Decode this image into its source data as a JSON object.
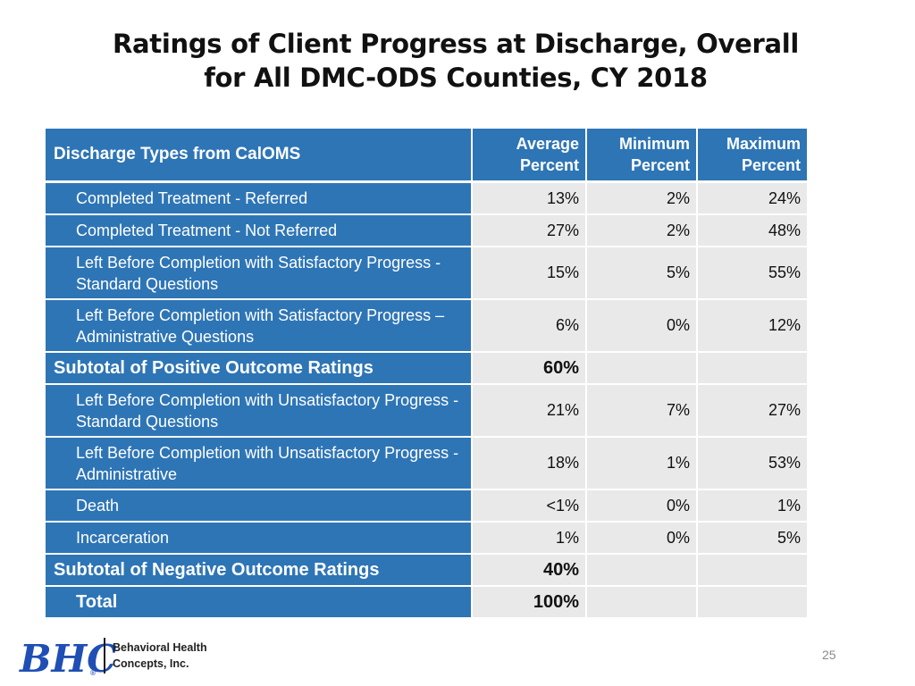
{
  "slide": {
    "title_line1": "Ratings of Client Progress at Discharge, Overall",
    "title_line2": "for All DMC-ODS Counties, CY 2018",
    "page_number": "25"
  },
  "table": {
    "headers": [
      "Discharge Types from CalOMS",
      "Average Percent",
      "Minimum Percent",
      "Maximum Percent"
    ],
    "rows": [
      {
        "label": "Completed Treatment - Referred",
        "avg": "13%",
        "min": "2%",
        "max": "24%"
      },
      {
        "label": "Completed Treatment - Not Referred",
        "avg": "27%",
        "min": "2%",
        "max": "48%"
      },
      {
        "label": "Left Before Completion with Satisfactory Progress - Standard Questions",
        "avg": "15%",
        "min": "5%",
        "max": "55%"
      },
      {
        "label": "Left Before Completion with Satisfactory Progress – Administrative Questions",
        "avg": "6%",
        "min": "0%",
        "max": "12%"
      },
      {
        "label": "Subtotal of Positive Outcome Ratings",
        "avg": "60%",
        "min": "",
        "max": ""
      },
      {
        "label": "Left Before Completion with Unsatisfactory Progress - Standard Questions",
        "avg": "21%",
        "min": "7%",
        "max": "27%"
      },
      {
        "label": "Left Before Completion with Unsatisfactory Progress - Administrative",
        "avg": "18%",
        "min": "1%",
        "max": "53%"
      },
      {
        "label": "Death",
        "avg": "<1%",
        "min": "0%",
        "max": "1%"
      },
      {
        "label": "Incarceration",
        "avg": "1%",
        "min": "0%",
        "max": "5%"
      },
      {
        "label": "Subtotal of Negative Outcome Ratings",
        "avg": "40%",
        "min": "",
        "max": ""
      },
      {
        "label": "Total",
        "avg": "100%",
        "min": "",
        "max": ""
      }
    ]
  },
  "logo": {
    "mark": "BHC",
    "line1": "Behavioral Health",
    "line2": "Concepts, Inc."
  },
  "colors": {
    "header_blue": "#2e75b6",
    "cell_gray": "#e9e9e9",
    "logo_blue": "#1f4fb4"
  }
}
